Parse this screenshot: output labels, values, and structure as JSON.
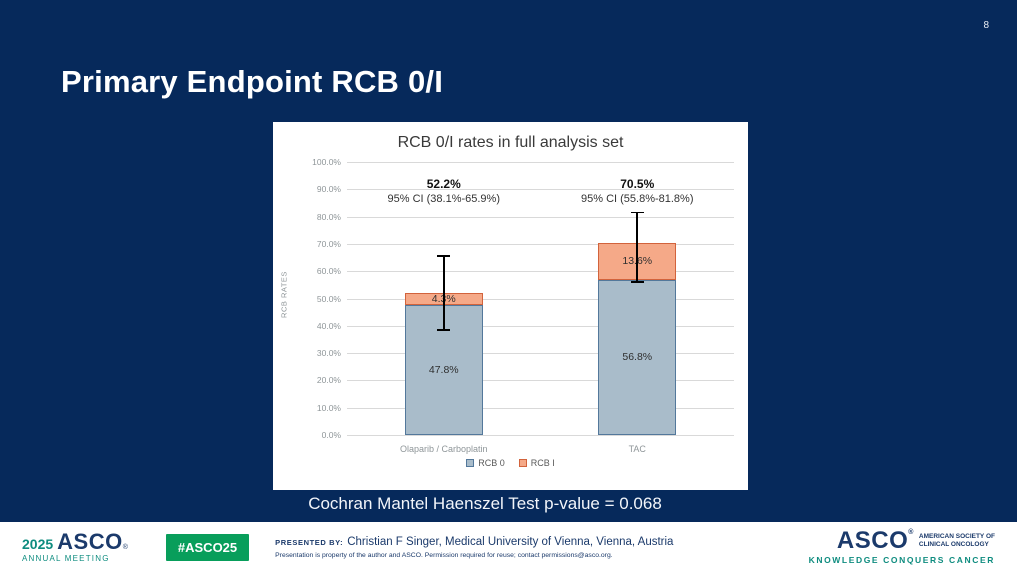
{
  "slide": {
    "page_number": "8",
    "title": "Primary Endpoint RCB 0/I",
    "stat_note": "Cochran Mantel Haenszel Test p-value = 0.068"
  },
  "chart_data": {
    "type": "bar",
    "stacked": true,
    "title": "RCB 0/I rates in full analysis set",
    "xlabel": "",
    "ylabel": "RCB RATES",
    "ylim": [
      0,
      100
    ],
    "ytick_step": 10,
    "ytick_suffix": "%",
    "grid": true,
    "legend_position": "bottom",
    "categories": [
      "Olaparib / Carboplatin",
      "TAC"
    ],
    "series": [
      {
        "name": "RCB 0",
        "values": [
          47.8,
          56.8
        ],
        "fill": "#a9bcca",
        "border": "#53789b"
      },
      {
        "name": "RCB I",
        "values": [
          4.3,
          13.6
        ],
        "fill": "#f5a988",
        "border": "#d2633c"
      }
    ],
    "segment_labels": [
      [
        "47.8%",
        "4.3%"
      ],
      [
        "56.8%",
        "13.6%"
      ]
    ],
    "totals": [
      "52.2%",
      "70.5%"
    ],
    "ci_labels": [
      "95% CI (38.1%-65.9%)",
      "95% CI (55.8%-81.8%)"
    ],
    "error_bars": [
      {
        "low": 38.1,
        "high": 65.9
      },
      {
        "low": 55.8,
        "high": 81.8
      }
    ]
  },
  "footer": {
    "meeting_year": "2025",
    "meeting_org": "ASCO",
    "meeting_reg": "®",
    "meeting_name": "ANNUAL MEETING",
    "hashtag": "#ASCO25",
    "presented_by_label": "PRESENTED BY:",
    "presenter": "Christian F Singer, Medical University of Vienna, Vienna, Austria",
    "disclaimer": "Presentation is property of the author and ASCO. Permission required for reuse; contact permissions@asco.org.",
    "org_name": "ASCO",
    "org_reg": "®",
    "org_sub1": "AMERICAN SOCIETY OF",
    "org_sub2": "CLINICAL ONCOLOGY",
    "org_tagline": "KNOWLEDGE CONQUERS CANCER"
  },
  "colors": {
    "slide_bg": "#06295b",
    "panel_bg": "#ffffff",
    "gridline": "#d9d9d9",
    "error_bar": "#000000",
    "footer_navy": "#1b3a6b",
    "footer_teal": "#0e8c7f",
    "badge_green": "#089e5b"
  }
}
